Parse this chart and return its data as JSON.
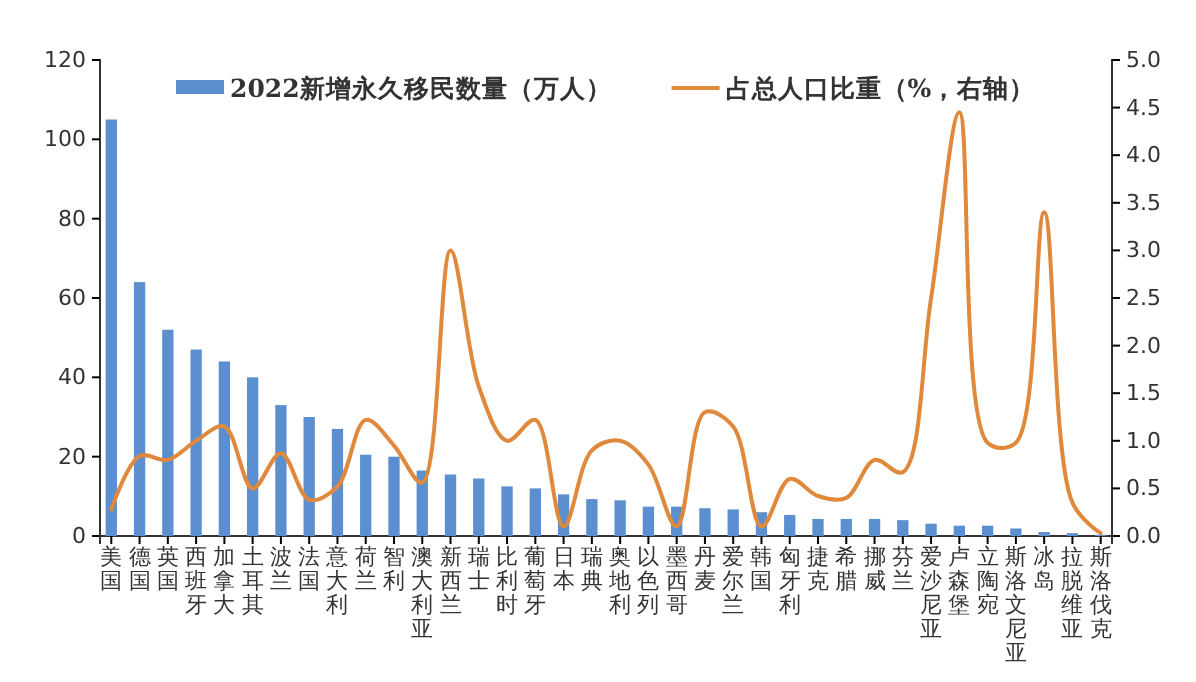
{
  "chart_data": {
    "type": "bar",
    "categories": [
      "美国",
      "德国",
      "英国",
      "西班牙",
      "加拿大",
      "土耳其",
      "波兰",
      "法国",
      "意大利",
      "荷兰",
      "智利",
      "澳大利亚",
      "新西兰",
      "瑞士",
      "比利时",
      "葡萄牙",
      "日本",
      "瑞典",
      "奥地利",
      "以色列",
      "墨西哥",
      "丹麦",
      "爱尔兰",
      "韩国",
      "匈牙利",
      "捷克",
      "希腊",
      "挪威",
      "芬兰",
      "爱沙尼亚",
      "卢森堡",
      "立陶宛",
      "斯洛文尼亚",
      "冰岛",
      "拉脱维亚",
      "斯洛伐克"
    ],
    "series": [
      {
        "name": "2022新增永久移民数量（万人）",
        "color": "#5b8fcf",
        "values": [
          105,
          64,
          52,
          47,
          44,
          40,
          33,
          30,
          27,
          20.5,
          20,
          16.5,
          15.5,
          14.5,
          12.5,
          12,
          10.5,
          9.3,
          9,
          7.4,
          7.4,
          7,
          6.7,
          6,
          5.3,
          4.3,
          4.3,
          4.3,
          4,
          3.1,
          2.6,
          2.6,
          1.9,
          1,
          0.7,
          0.3
        ]
      },
      {
        "name": "占总人口比重（%，右轴）",
        "type": "line",
        "axis": "y2",
        "color": "#e0893d",
        "values": [
          0.28,
          0.84,
          0.8,
          1.0,
          1.15,
          0.5,
          0.87,
          0.38,
          0.52,
          1.22,
          0.95,
          0.56,
          3.0,
          1.57,
          1.0,
          1.22,
          0.1,
          0.9,
          1.0,
          0.75,
          0.1,
          1.3,
          1.15,
          0.1,
          0.6,
          0.42,
          0.4,
          0.8,
          0.67,
          2.5,
          4.45,
          0.98,
          0.98,
          3.4,
          0.35,
          0.03
        ]
      }
    ],
    "ylim": [
      0,
      120
    ],
    "yticks": [
      0,
      20,
      40,
      60,
      80,
      100,
      120
    ],
    "y2lim": [
      0,
      5
    ],
    "y2ticks": [
      {
        "value": 0,
        "label": "0.0"
      },
      {
        "value": 0.5,
        "label": "0.5"
      },
      {
        "value": 1,
        "label": "1.0"
      },
      {
        "value": 1.5,
        "label": "1.5"
      },
      {
        "value": 2,
        "label": "2.0"
      },
      {
        "value": 2.5,
        "label": "2.5"
      },
      {
        "value": 3,
        "label": "3.0"
      },
      {
        "value": 3.5,
        "label": "3.5"
      },
      {
        "value": 4,
        "label": "4.0"
      },
      {
        "value": 4.5,
        "label": "4.5"
      },
      {
        "value": 5,
        "label": "5.0"
      }
    ],
    "legend": "top",
    "marker": "none",
    "line_style": "solid"
  }
}
